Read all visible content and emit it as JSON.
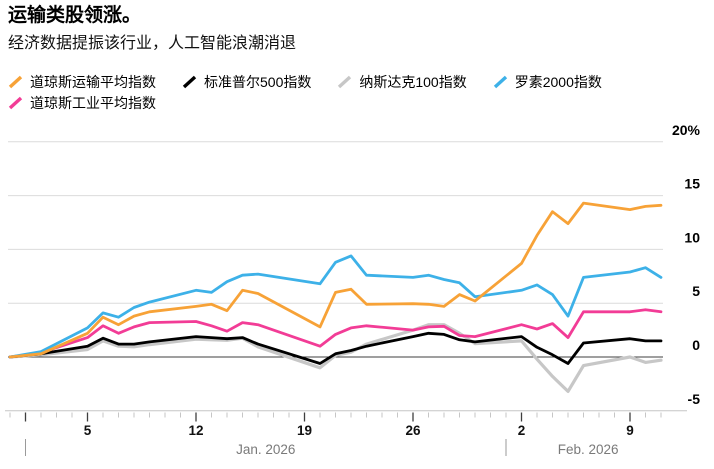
{
  "header": {
    "title": "运输类股领涨。",
    "subtitle": "经济数据提振该行业，人工智能浪潮消退"
  },
  "colors": {
    "grid_light": "#dcdcdc",
    "zero_line": "#3f3f3f",
    "axis_line": "#c6c6c6",
    "minor_tick": "#c6c6c6",
    "major_tick": "#3f3f3f",
    "month_text": "#7a7a7a",
    "separator": "#9a9a9a"
  },
  "chart_data": {
    "type": "line",
    "unit": "%",
    "ylim": [
      -5,
      20
    ],
    "grid": true,
    "legend_position": "top",
    "y_axis": {
      "side": "right",
      "tick_values": [
        20,
        15,
        10,
        5,
        0,
        -5
      ],
      "tick_labels": [
        "20%",
        "15",
        "10",
        "5",
        "0",
        "-5"
      ]
    },
    "x_axis": {
      "tick_labels": [
        {
          "label": "5",
          "day": 5
        },
        {
          "label": "12",
          "day": 12
        },
        {
          "label": "19",
          "day": 19
        },
        {
          "label": "26",
          "day": 26
        },
        {
          "label": "2",
          "day": 33
        },
        {
          "label": "9",
          "day": 40
        }
      ],
      "months": [
        {
          "label": "Jan. 2026",
          "separator_day": 1,
          "end_day": 32
        },
        {
          "label": "Feb. 2026",
          "separator_day": 32,
          "end_day": 43
        }
      ],
      "minor_tick_every_day": true,
      "major_tick_days": [
        1,
        5,
        12,
        19,
        26,
        33,
        40
      ]
    },
    "x_dates": [
      "12/31",
      "1/2",
      "1/5",
      "1/6",
      "1/7",
      "1/8",
      "1/9",
      "1/12",
      "1/13",
      "1/14",
      "1/15",
      "1/16",
      "1/20",
      "1/21",
      "1/22",
      "1/23",
      "1/26",
      "1/27",
      "1/28",
      "1/29",
      "1/30",
      "2/2",
      "2/3",
      "2/4",
      "2/5",
      "2/6",
      "2/9",
      "2/10",
      "2/11"
    ],
    "day_offsets": [
      0,
      2,
      5,
      6,
      7,
      8,
      9,
      12,
      13,
      14,
      15,
      16,
      20,
      21,
      22,
      23,
      26,
      27,
      28,
      29,
      30,
      33,
      34,
      35,
      36,
      37,
      40,
      41,
      42
    ],
    "series": [
      {
        "name": "道琼斯运输平均指数",
        "slug": "dow-transport",
        "color": "#F7A237",
        "row": 1,
        "width": 2.8,
        "values": [
          0,
          0.3,
          2.2,
          3.7,
          3.0,
          3.8,
          4.2,
          4.7,
          4.9,
          4.3,
          6.2,
          5.9,
          2.8,
          6.0,
          6.3,
          4.9,
          4.95,
          4.9,
          4.7,
          5.8,
          5.2,
          8.7,
          11.3,
          13.5,
          12.4,
          14.3,
          13.7,
          14.0,
          14.1
        ]
      },
      {
        "name": "标准普尔500指数",
        "slug": "sp500",
        "color": "#000000",
        "row": 1,
        "width": 2.8,
        "values": [
          0,
          0.3,
          1.0,
          1.75,
          1.2,
          1.2,
          1.4,
          1.9,
          1.8,
          1.7,
          1.8,
          1.2,
          -0.6,
          0.3,
          0.6,
          1.0,
          1.9,
          2.2,
          2.1,
          1.6,
          1.4,
          1.9,
          0.9,
          0.2,
          -0.6,
          1.3,
          1.7,
          1.5,
          1.5
        ]
      },
      {
        "name": "纳斯达克100指数",
        "slug": "nasdaq100",
        "color": "#C7C7C7",
        "row": 1,
        "width": 3.2,
        "values": [
          0,
          0.2,
          0.7,
          1.5,
          1.0,
          0.95,
          1.15,
          1.65,
          1.6,
          1.55,
          1.75,
          0.95,
          -1.0,
          0.15,
          0.45,
          1.2,
          2.5,
          3.0,
          3.0,
          2.2,
          1.25,
          1.5,
          -0.2,
          -1.8,
          -3.2,
          -0.8,
          0.0,
          -0.5,
          -0.3
        ]
      },
      {
        "name": "罗素2000指数",
        "slug": "russell2000",
        "color": "#3DB1E8",
        "row": 1,
        "width": 2.8,
        "values": [
          0,
          0.5,
          2.7,
          4.1,
          3.7,
          4.6,
          5.1,
          6.2,
          6.0,
          7.0,
          7.6,
          7.7,
          6.8,
          8.8,
          9.4,
          7.6,
          7.4,
          7.6,
          7.2,
          6.9,
          5.6,
          6.2,
          6.7,
          5.8,
          3.8,
          7.4,
          7.9,
          8.3,
          7.4
        ]
      },
      {
        "name": "道琼斯工业平均指数",
        "slug": "dow-industrial",
        "color": "#F23C96",
        "row": 2,
        "width": 2.8,
        "values": [
          0,
          0.4,
          1.8,
          2.9,
          2.2,
          2.8,
          3.2,
          3.3,
          2.9,
          2.4,
          3.2,
          3.0,
          1.0,
          2.1,
          2.7,
          2.9,
          2.5,
          2.8,
          2.85,
          2.0,
          1.9,
          3.0,
          2.6,
          3.1,
          1.8,
          4.2,
          4.2,
          4.4,
          4.2
        ]
      }
    ],
    "draw_order": [
      2,
      1,
      4,
      3,
      0
    ]
  }
}
